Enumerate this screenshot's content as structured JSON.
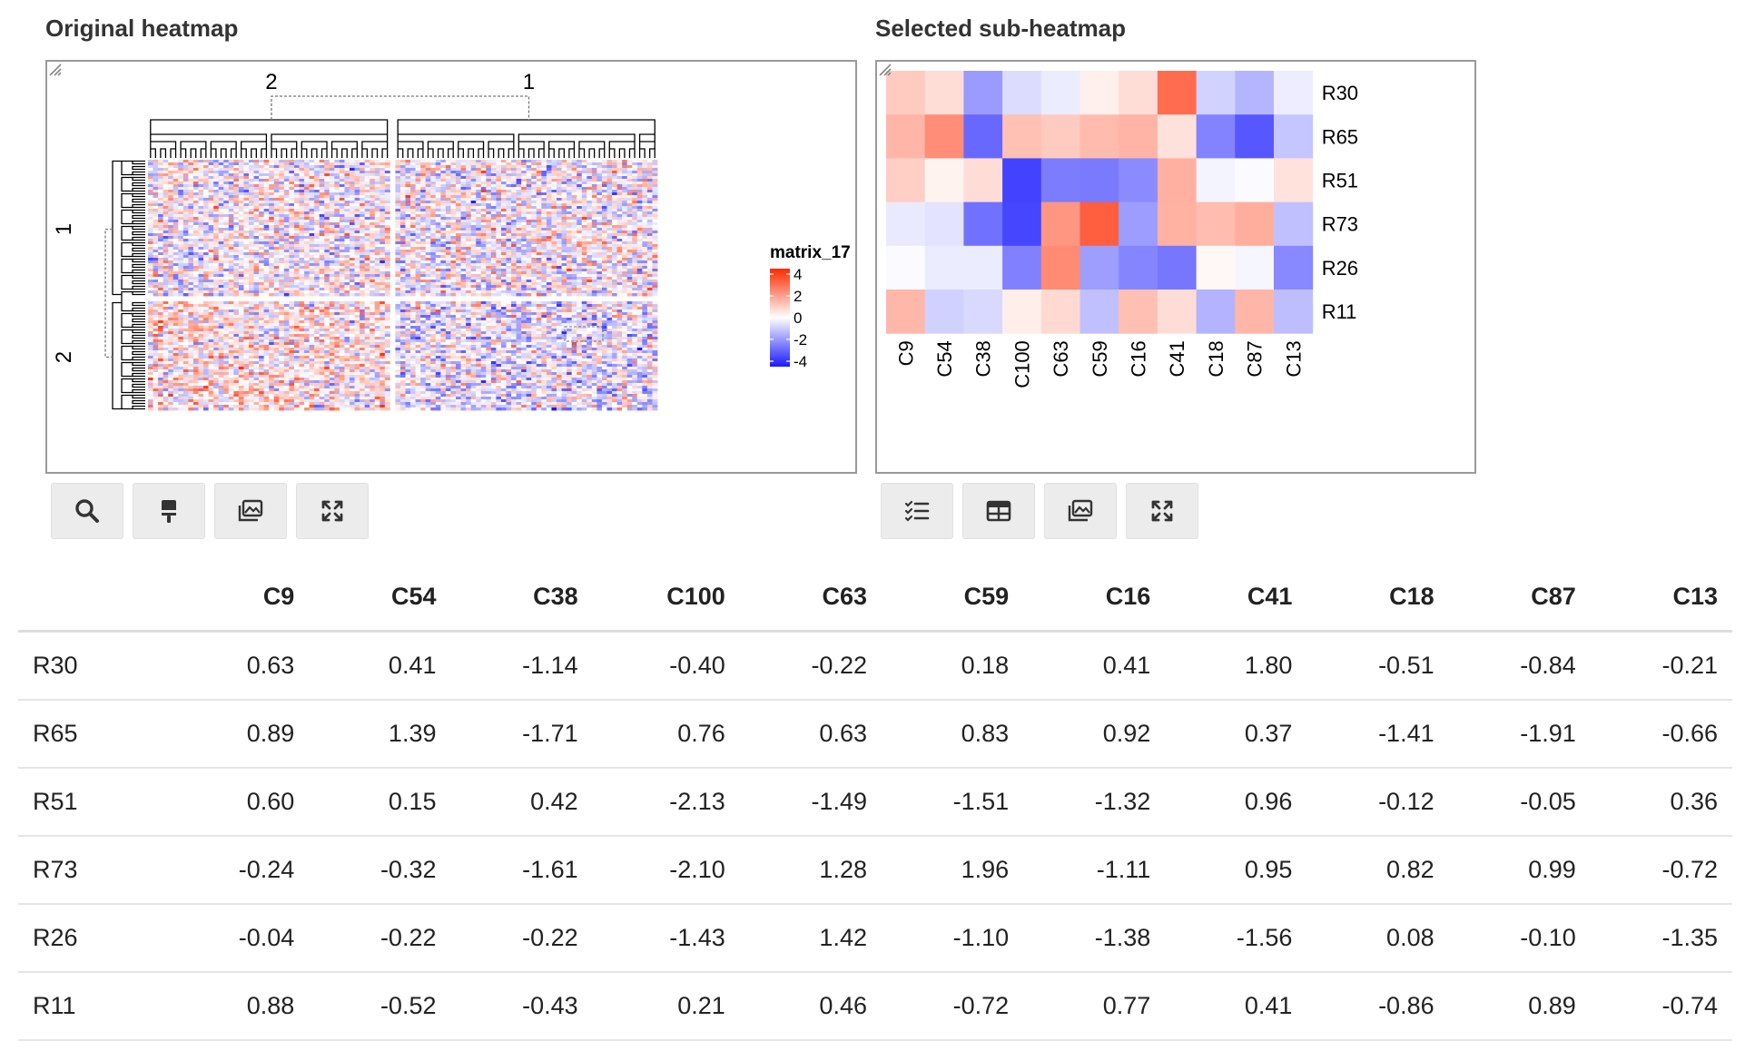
{
  "left_panel": {
    "title": "Original heatmap",
    "column_slice_labels": [
      "2",
      "1"
    ],
    "row_slice_labels": [
      "1",
      "2"
    ],
    "legend": {
      "title": "matrix_17",
      "ticks": [
        "4",
        "2",
        "0",
        "-2",
        "-4"
      ]
    },
    "toolbar": [
      {
        "icon": "search-icon",
        "name": "search-button"
      },
      {
        "icon": "brush-icon",
        "name": "brush-button"
      },
      {
        "icon": "image-icon",
        "name": "save-image-button"
      },
      {
        "icon": "expand-icon",
        "name": "expand-button"
      }
    ]
  },
  "right_panel": {
    "title": "Selected sub-heatmap",
    "toolbar": [
      {
        "icon": "checklist-icon",
        "name": "checklist-button"
      },
      {
        "icon": "table-icon",
        "name": "table-button"
      },
      {
        "icon": "image-icon",
        "name": "save-image-button"
      },
      {
        "icon": "expand-icon",
        "name": "expand-button"
      }
    ]
  },
  "colors": {
    "high": "#ff2a00",
    "mid": "#ffffff",
    "low": "#1a1aff"
  },
  "table": {
    "columns": [
      "C9",
      "C54",
      "C38",
      "C100",
      "C63",
      "C59",
      "C16",
      "C41",
      "C18",
      "C87",
      "C13"
    ],
    "rows": [
      {
        "name": "R30",
        "values": [
          "0.63",
          "0.41",
          "-1.14",
          "-0.40",
          "-0.22",
          "0.18",
          "0.41",
          "1.80",
          "-0.51",
          "-0.84",
          "-0.21"
        ]
      },
      {
        "name": "R65",
        "values": [
          "0.89",
          "1.39",
          "-1.71",
          "0.76",
          "0.63",
          "0.83",
          "0.92",
          "0.37",
          "-1.41",
          "-1.91",
          "-0.66"
        ]
      },
      {
        "name": "R51",
        "values": [
          "0.60",
          "0.15",
          "0.42",
          "-2.13",
          "-1.49",
          "-1.51",
          "-1.32",
          "0.96",
          "-0.12",
          "-0.05",
          "0.36"
        ]
      },
      {
        "name": "R73",
        "values": [
          "-0.24",
          "-0.32",
          "-1.61",
          "-2.10",
          "1.28",
          "1.96",
          "-1.11",
          "0.95",
          "0.82",
          "0.99",
          "-0.72"
        ]
      },
      {
        "name": "R26",
        "values": [
          "-0.04",
          "-0.22",
          "-0.22",
          "-1.43",
          "1.42",
          "-1.10",
          "-1.38",
          "-1.56",
          "0.08",
          "-0.10",
          "-1.35"
        ]
      },
      {
        "name": "R11",
        "values": [
          "0.88",
          "-0.52",
          "-0.43",
          "0.21",
          "0.46",
          "-0.72",
          "0.77",
          "0.41",
          "-0.86",
          "0.89",
          "-0.74"
        ]
      }
    ]
  }
}
